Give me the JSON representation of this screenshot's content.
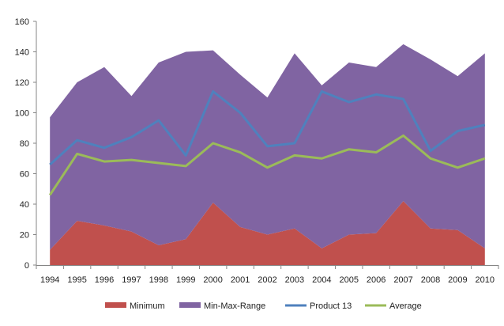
{
  "chart_data": {
    "type": "area",
    "categories": [
      "1994",
      "1995",
      "1996",
      "1997",
      "1998",
      "1999",
      "2000",
      "2001",
      "2002",
      "2003",
      "2004",
      "2005",
      "2006",
      "2007",
      "2008",
      "2009",
      "2010"
    ],
    "ylim": [
      0,
      160
    ],
    "yticks": [
      0,
      20,
      40,
      60,
      80,
      100,
      120,
      140,
      160
    ],
    "grid": false,
    "legend": "bottom",
    "series": [
      {
        "name": "Minimum",
        "kind": "stacked-area",
        "color": "#c0504d",
        "values": [
          10,
          29,
          26,
          22,
          13,
          17,
          41,
          25,
          20,
          24,
          11,
          20,
          21,
          42,
          24,
          23,
          11
        ]
      },
      {
        "name": "Min-Max-Range",
        "kind": "stacked-area",
        "color": "#8064a2",
        "values": [
          87,
          91,
          104,
          89,
          120,
          123,
          100,
          100,
          90,
          115,
          107,
          113,
          109,
          103,
          111,
          101,
          128
        ]
      },
      {
        "name": "Product 13",
        "kind": "line",
        "color": "#4f81bd",
        "values": [
          66,
          82,
          77,
          84,
          95,
          72,
          114,
          100,
          78,
          80,
          114,
          107,
          112,
          109,
          75,
          88,
          92
        ]
      },
      {
        "name": "Average",
        "kind": "line",
        "color": "#9bbb59",
        "values": [
          46,
          73,
          68,
          69,
          67,
          65,
          80,
          74,
          64,
          72,
          70,
          76,
          74,
          85,
          70,
          64,
          70
        ]
      }
    ]
  }
}
